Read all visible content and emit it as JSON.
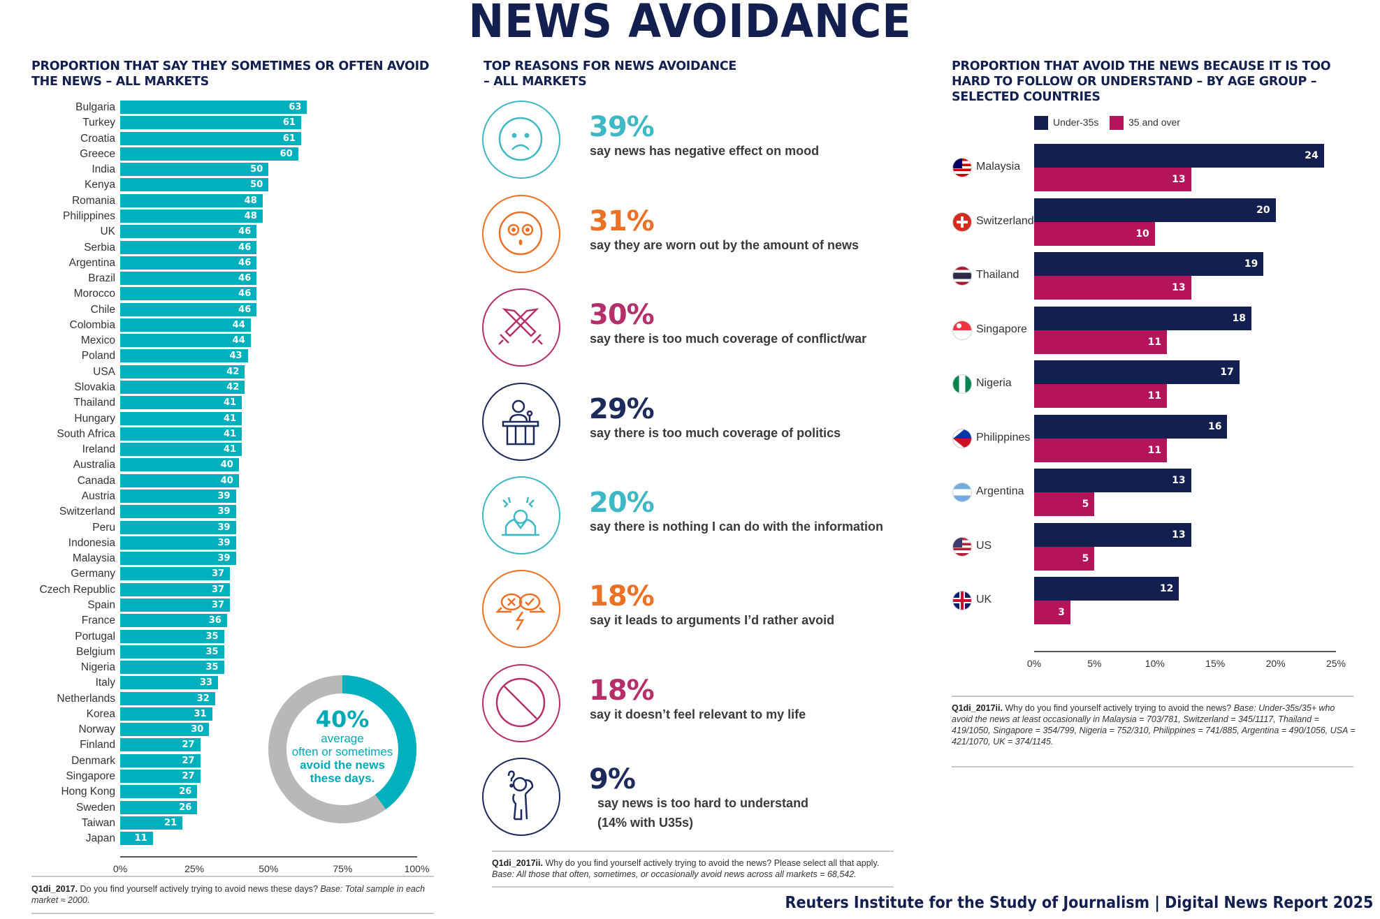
{
  "page": {
    "title": "NEWS AVOIDANCE",
    "footer": "Reuters Institute for the Study of Journalism | Digital News Report 2025"
  },
  "colors": {
    "navy": "#13204f",
    "teal": "#00b1bd",
    "magenta": "#b5135c",
    "orange": "#ec7126",
    "donut_track": "#b8b8b8"
  },
  "left_panel": {
    "title_line1": "PROPORTION THAT SAY THEY SOMETIMES OR OFTEN AVOID",
    "title_line2": "THE NEWS – ALL MARKETS",
    "donut": {
      "value_pct": 40,
      "value_label": "40%",
      "line1": "average",
      "line2": "often or sometimes",
      "line3": "avoid the news",
      "line4": "these days."
    },
    "footnote_bold": "Q1di_2017.",
    "footnote_text": " Do you find yourself actively trying to avoid news these days? ",
    "footnote_italic": "Base: Total sample in each market ≈ 2000."
  },
  "middle_panel": {
    "title_line1": "TOP REASONS FOR NEWS AVOIDANCE",
    "title_line2": "– ALL MARKETS",
    "reasons": [
      {
        "pct": "39%",
        "text": "say news has negative effect on mood",
        "icon": "sad-face-icon",
        "color": "#3fb8c5"
      },
      {
        "pct": "31%",
        "text": "say they are worn out by the amount of news",
        "icon": "surprised-face-icon",
        "color": "#ec7126"
      },
      {
        "pct": "30%",
        "text": "say there is too much coverage of conflict/war",
        "icon": "crossed-swords-icon",
        "color": "#b5306b"
      },
      {
        "pct": "29%",
        "text": "say there is too much coverage of politics",
        "icon": "politician-podium-icon",
        "color": "#1c2a5c"
      },
      {
        "pct": "20%",
        "text": "say there is nothing I can do with the information",
        "icon": "stressed-person-icon",
        "color": "#3fb8c5"
      },
      {
        "pct": "18%",
        "text": "say it leads to arguments I’d rather avoid",
        "icon": "arguing-speech-bubbles-icon",
        "color": "#ec7126"
      },
      {
        "pct": "18%",
        "text": "say it doesn’t feel relevant to my life",
        "icon": "prohibited-sign-icon",
        "color": "#b5306b"
      },
      {
        "pct": "9%",
        "text": "say news is too hard to understand",
        "text2": "(14% with U35s)",
        "icon": "confused-person-icon",
        "color": "#1c2a5c"
      }
    ],
    "footnote_bold": "Q1di_2017ii.",
    "footnote_text": " Why do you find yourself actively trying to avoid the news? Please select all that apply. ",
    "footnote_italic": "Base: All those that often, sometimes, or occasionally avoid news across all markets = 68,542."
  },
  "right_panel": {
    "title_line1": "PROPORTION THAT AVOID THE NEWS BECAUSE IT IS TOO",
    "title_line2": "HARD TO FOLLOW OR UNDERSTAND – BY AGE GROUP –",
    "title_line3": "SELECTED COUNTRIES",
    "footnote_bold": "Q1di_2017ii.",
    "footnote_text": " Why do you find yourself actively trying to avoid the news? ",
    "footnote_italic": "Base: Under-35s/35+ who avoid the news at least occasionally in Malaysia = 703/781, Switzerland = 345/1117, Thailand = 419/1050, Singapore = 354/799, Nigeria = 752/310, Philippines = 741/885, Argentina = 490/1056, USA = 421/1070, UK = 374/1145."
  },
  "chart_data": [
    {
      "type": "bar",
      "orientation": "horizontal",
      "title": "Proportion that say they sometimes or often avoid the news – all markets",
      "xlabel": "",
      "ylabel": "",
      "xlim": [
        0,
        100
      ],
      "x_ticks": [
        "0%",
        "25%",
        "50%",
        "75%",
        "100%"
      ],
      "grid": false,
      "color": "#00b1bd",
      "categories": [
        "Bulgaria",
        "Turkey",
        "Croatia",
        "Greece",
        "India",
        "Kenya",
        "Romania",
        "Philippines",
        "UK",
        "Serbia",
        "Argentina",
        "Brazil",
        "Morocco",
        "Chile",
        "Colombia",
        "Mexico",
        "Poland",
        "USA",
        "Slovakia",
        "Thailand",
        "Hungary",
        "South Africa",
        "Ireland",
        "Australia",
        "Canada",
        "Austria",
        "Switzerland",
        "Peru",
        "Indonesia",
        "Malaysia",
        "Germany",
        "Czech Republic",
        "Spain",
        "France",
        "Portugal",
        "Belgium",
        "Nigeria",
        "Italy",
        "Netherlands",
        "Korea",
        "Norway",
        "Finland",
        "Denmark",
        "Singapore",
        "Hong Kong",
        "Sweden",
        "Taiwan",
        "Japan"
      ],
      "values": [
        63,
        61,
        61,
        60,
        50,
        50,
        48,
        48,
        46,
        46,
        46,
        46,
        46,
        46,
        44,
        44,
        43,
        42,
        42,
        41,
        41,
        41,
        41,
        40,
        40,
        39,
        39,
        39,
        39,
        39,
        37,
        37,
        37,
        36,
        35,
        35,
        35,
        33,
        32,
        31,
        30,
        27,
        27,
        27,
        26,
        26,
        21,
        11
      ]
    },
    {
      "type": "pie",
      "variant": "donut",
      "title": "Average often or sometimes avoid the news these days",
      "values": [
        40,
        60
      ],
      "labels": [
        "avoid",
        "other"
      ]
    },
    {
      "type": "bar",
      "orientation": "horizontal",
      "title": "Proportion that avoid the news because it is too hard to follow or understand – by age group – selected countries",
      "xlim": [
        0,
        25
      ],
      "x_ticks": [
        "0%",
        "5%",
        "10%",
        "15%",
        "20%",
        "25%"
      ],
      "legend": "top-left",
      "grid": false,
      "categories": [
        "Malaysia",
        "Switzerland",
        "Thailand",
        "Singapore",
        "Nigeria",
        "Philippines",
        "Argentina",
        "US",
        "UK"
      ],
      "series": [
        {
          "name": "Under-35s",
          "color": "#13204f",
          "values": [
            24,
            20,
            19,
            18,
            17,
            16,
            13,
            13,
            12
          ]
        },
        {
          "name": "35 and over",
          "color": "#b5135c",
          "values": [
            13,
            10,
            13,
            11,
            11,
            11,
            5,
            5,
            3
          ]
        }
      ]
    }
  ]
}
